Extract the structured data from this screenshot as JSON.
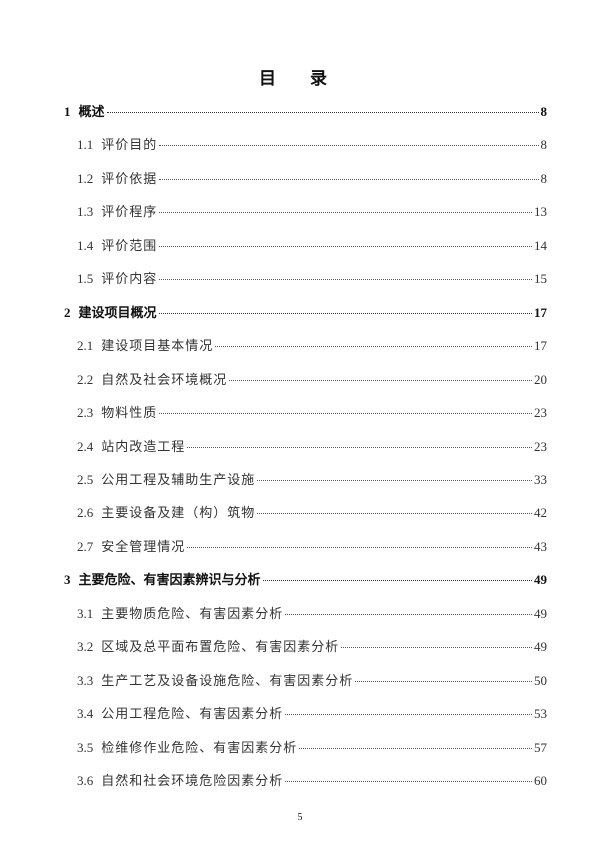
{
  "title": "目 录",
  "entries": [
    {
      "level": 1,
      "num": "1",
      "text": "概述",
      "page": "8"
    },
    {
      "level": 2,
      "num": "1.1",
      "text": "评价目的",
      "page": "8"
    },
    {
      "level": 2,
      "num": "1.2",
      "text": "评价依据",
      "page": "8"
    },
    {
      "level": 2,
      "num": "1.3",
      "text": "评价程序",
      "page": "13"
    },
    {
      "level": 2,
      "num": "1.4",
      "text": "评价范围",
      "page": "14"
    },
    {
      "level": 2,
      "num": "1.5",
      "text": "评价内容",
      "page": "15"
    },
    {
      "level": 1,
      "num": "2",
      "text": "建设项目概况",
      "page": "17"
    },
    {
      "level": 2,
      "num": "2.1",
      "text": "建设项目基本情况",
      "page": "17"
    },
    {
      "level": 2,
      "num": "2.2",
      "text": "自然及社会环境概况",
      "page": "20"
    },
    {
      "level": 2,
      "num": "2.3",
      "text": "物料性质",
      "page": "23"
    },
    {
      "level": 2,
      "num": "2.4",
      "text": "站内改造工程",
      "page": "23"
    },
    {
      "level": 2,
      "num": "2.5",
      "text": "公用工程及辅助生产设施",
      "page": "33"
    },
    {
      "level": 2,
      "num": "2.6",
      "text": "主要设备及建（构）筑物",
      "page": "42"
    },
    {
      "level": 2,
      "num": "2.7",
      "text": "安全管理情况",
      "page": "43"
    },
    {
      "level": 1,
      "num": "3",
      "text": "主要危险、有害因素辨识与分析",
      "page": "49"
    },
    {
      "level": 2,
      "num": "3.1",
      "text": "主要物质危险、有害因素分析",
      "page": "49"
    },
    {
      "level": 2,
      "num": "3.2",
      "text": "区域及总平面布置危险、有害因素分析",
      "page": "49"
    },
    {
      "level": 2,
      "num": "3.3",
      "text": "生产工艺及设备设施危险、有害因素分析",
      "page": "50"
    },
    {
      "level": 2,
      "num": "3.4",
      "text": "公用工程危险、有害因素分析",
      "page": "53"
    },
    {
      "level": 2,
      "num": "3.5",
      "text": "检维修作业危险、有害因素分析",
      "page": "57"
    },
    {
      "level": 2,
      "num": "3.6",
      "text": "自然和社会环境危险因素分析",
      "page": "60"
    }
  ],
  "page_number": "5"
}
